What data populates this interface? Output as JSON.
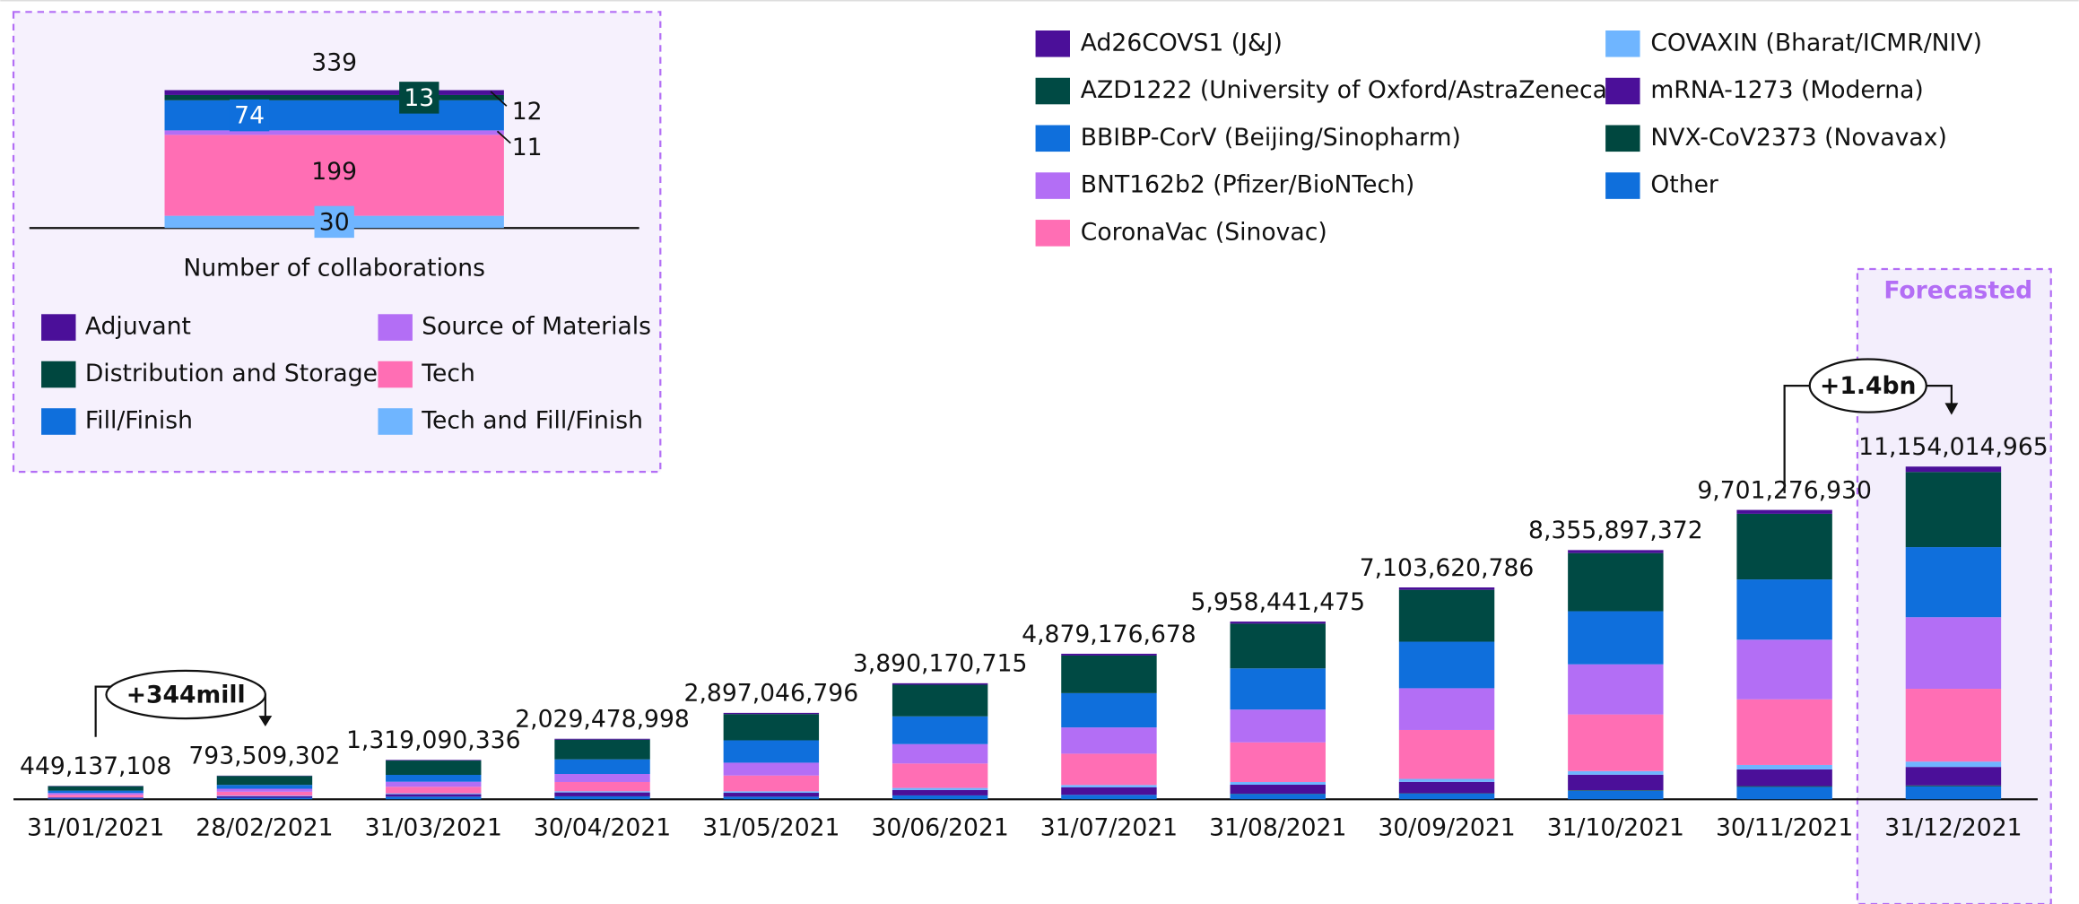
{
  "chart_data": [
    {
      "type": "bar",
      "stacked": true,
      "categories": [
        "31/01/2021",
        "28/02/2021",
        "31/03/2021",
        "30/04/2021",
        "31/05/2021",
        "30/06/2021",
        "31/07/2021",
        "31/08/2021",
        "30/09/2021",
        "31/10/2021",
        "30/11/2021",
        "31/12/2021"
      ],
      "series": [
        {
          "name": "Ad26COVS1 (J&J)",
          "color": "#4b0f99",
          "values": [
            9000000,
            10000000,
            20000000,
            30000000,
            40000000,
            50000000,
            60000000,
            70000000,
            80000000,
            100000000,
            130000000,
            180000000
          ]
        },
        {
          "name": "AZD1222 (University of Oxford/AstraZeneca)",
          "color": "#004a44",
          "values": [
            150000000,
            300000000,
            480000000,
            660000000,
            880000000,
            1060000000,
            1260000000,
            1500000000,
            1740000000,
            1950000000,
            2200000000,
            2520000000
          ]
        },
        {
          "name": "BBIBP-CorV (Beijing/Sinopharm)",
          "color": "#0f6fdc",
          "values": [
            80000000,
            130000000,
            230000000,
            490000000,
            750000000,
            930000000,
            1150000000,
            1380000000,
            1560000000,
            1780000000,
            2020000000,
            2350000000
          ]
        },
        {
          "name": "BNT162b2 (Pfizer/BioNTech)",
          "color": "#b36ef5",
          "values": [
            60000000,
            100000000,
            170000000,
            270000000,
            430000000,
            650000000,
            880000000,
            1100000000,
            1400000000,
            1680000000,
            2000000000,
            2400000000
          ]
        },
        {
          "name": "CoronaVac (Sinovac)",
          "color": "#ff6eb4",
          "values": [
            80000000,
            130000000,
            220000000,
            310000000,
            530000000,
            820000000,
            1050000000,
            1330000000,
            1640000000,
            1900000000,
            2200000000,
            2440000000
          ]
        },
        {
          "name": "COVAXIN (Bharat/ICMR/NIV)",
          "color": "#6fb5ff",
          "values": [
            10000000,
            20000000,
            30000000,
            40000000,
            50000000,
            70000000,
            80000000,
            90000000,
            100000000,
            120000000,
            150000000,
            180000000
          ]
        },
        {
          "name": "mRNA-1273 (Moderna)",
          "color": "#4b0f99",
          "values": [
            30000000,
            50000000,
            80000000,
            130000000,
            130000000,
            180000000,
            250000000,
            300000000,
            380000000,
            520000000,
            560000000,
            620000000
          ]
        },
        {
          "name": "NVX-CoV2373 (Novavax)",
          "color": "#00473f",
          "values": [
            0,
            0,
            0,
            0,
            0,
            0,
            0,
            10000000,
            10000000,
            20000000,
            25000000,
            30000000
          ]
        },
        {
          "name": "Other",
          "color": "#0f6fdc",
          "values": [
            30000000,
            53000000,
            89000000,
            99000000,
            87000000,
            130000000,
            149000000,
            178000000,
            193000000,
            285000000,
            416000000,
            434000000
          ]
        }
      ],
      "totals": [
        449137108,
        793509302,
        1319090336,
        2029478998,
        2897046796,
        3890170715,
        4879176678,
        5958441475,
        7103620786,
        8355897372,
        9701276930,
        11154014965
      ],
      "total_labels": [
        "449,137,108",
        "793,509,302",
        "1,319,090,336",
        "2,029,478,998",
        "2,897,046,796",
        "3,890,170,715",
        "4,879,176,678",
        "5,958,441,475",
        "7,103,620,786",
        "8,355,897,372",
        "9,701,276,930",
        "11,154,014,965"
      ],
      "annotations": [
        "+344mill",
        "+1.4bn",
        "Forecasted"
      ],
      "legend": "top-right"
    },
    {
      "type": "bar",
      "stacked": true,
      "xlabel": "Number of collaborations",
      "series": [
        {
          "name": "Adjuvant",
          "color": "#4b0f99",
          "values": [
            12
          ]
        },
        {
          "name": "Distribution and Storage",
          "color": "#00473f",
          "values": [
            13
          ]
        },
        {
          "name": "Fill/Finish",
          "color": "#0f6fdc",
          "values": [
            74
          ]
        },
        {
          "name": "Source of Materials",
          "color": "#b36ef5",
          "values": [
            11
          ]
        },
        {
          "name": "Tech",
          "color": "#ff6eb4",
          "values": [
            199
          ]
        },
        {
          "name": "Tech and Fill/Finish",
          "color": "#6fb5ff",
          "values": [
            30
          ]
        }
      ],
      "total": 339
    }
  ]
}
